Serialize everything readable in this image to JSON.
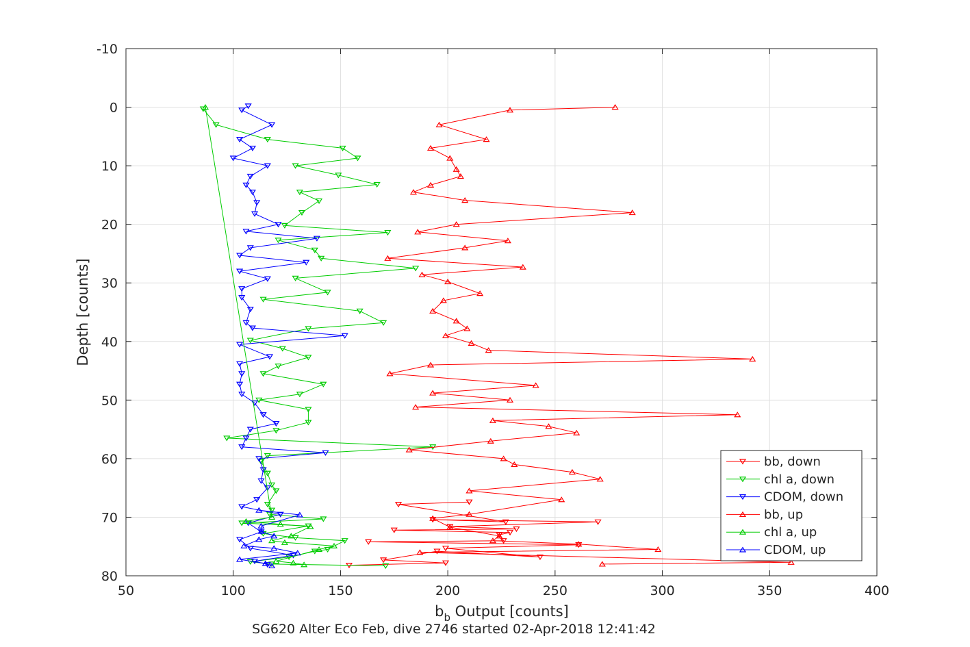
{
  "chart_data": {
    "type": "line",
    "xlabel_main": "b",
    "xlabel_sub": "b",
    "xlabel_rest": " Output [counts]",
    "ylabel": "Depth [counts]",
    "caption": "SG620 Alter Eco Feb, dive 2746 started 02-Apr-2018 12:41:42",
    "xlim": [
      50,
      400
    ],
    "ylim": [
      -10,
      80
    ],
    "y_reversed": true,
    "grid": true,
    "legend_position": "bottom-right",
    "xticks": [
      "50",
      "100",
      "150",
      "200",
      "250",
      "300",
      "350",
      "400"
    ],
    "yticks": [
      "-10",
      "0",
      "10",
      "20",
      "30",
      "40",
      "50",
      "60",
      "70",
      "80"
    ],
    "series": [
      {
        "name": "bb, down",
        "color": "#ff0000",
        "marker": "triangle-down",
        "points": [
          [
            154,
            78.2
          ],
          [
            199,
            77.8
          ],
          [
            170,
            77.3
          ],
          [
            195,
            75.8
          ],
          [
            243,
            76.8
          ],
          [
            199,
            75.3
          ],
          [
            261,
            74.7
          ],
          [
            163,
            74.2
          ],
          [
            226,
            74.0
          ],
          [
            224,
            73.0
          ],
          [
            229,
            72.6
          ],
          [
            175,
            72.2
          ],
          [
            232,
            72.0
          ],
          [
            201,
            71.6
          ],
          [
            270,
            70.8
          ],
          [
            193,
            70.4
          ],
          [
            227,
            70.8
          ],
          [
            177,
            67.8
          ],
          [
            210,
            67.4
          ]
        ]
      },
      {
        "name": "chl a, down",
        "color": "#00cc00",
        "marker": "triangle-down",
        "points": [
          [
            171,
            78.3
          ],
          [
            118,
            78.0
          ],
          [
            108,
            77.6
          ],
          [
            126,
            76.8
          ],
          [
            138,
            75.8
          ],
          [
            144,
            75.5
          ],
          [
            152,
            74.0
          ],
          [
            129,
            73.5
          ],
          [
            114,
            72.8
          ],
          [
            135,
            71.5
          ],
          [
            104,
            71.0
          ],
          [
            142,
            70.3
          ],
          [
            117,
            69.5
          ],
          [
            118,
            68.8
          ],
          [
            116,
            67.8
          ],
          [
            120,
            65.5
          ],
          [
            118,
            64.5
          ],
          [
            116,
            62.5
          ],
          [
            113,
            60.5
          ],
          [
            116,
            59.5
          ],
          [
            193,
            58.0
          ],
          [
            97,
            56.5
          ],
          [
            120,
            55.2
          ],
          [
            135,
            53.8
          ],
          [
            135,
            51.6
          ],
          [
            112,
            50.0
          ],
          [
            131,
            49.0
          ],
          [
            142,
            47.3
          ],
          [
            114,
            45.5
          ],
          [
            121,
            44.2
          ],
          [
            135,
            42.7
          ],
          [
            123,
            41.2
          ],
          [
            108,
            39.8
          ],
          [
            135,
            37.8
          ],
          [
            170,
            36.8
          ],
          [
            159,
            34.8
          ],
          [
            114,
            32.8
          ],
          [
            144,
            31.6
          ],
          [
            129,
            29.2
          ],
          [
            185,
            27.5
          ],
          [
            141,
            25.8
          ],
          [
            138,
            24.4
          ],
          [
            121,
            22.7
          ],
          [
            172,
            21.4
          ],
          [
            124,
            20.2
          ],
          [
            132,
            18.0
          ],
          [
            140,
            16.0
          ],
          [
            131,
            14.5
          ],
          [
            167,
            13.2
          ],
          [
            149,
            11.6
          ],
          [
            129,
            10.0
          ],
          [
            158,
            8.7
          ],
          [
            151,
            7.0
          ],
          [
            116,
            5.5
          ],
          [
            92,
            3.0
          ],
          [
            86,
            0.3
          ]
        ]
      },
      {
        "name": "CDOM, down",
        "color": "#0000ff",
        "marker": "triangle-down",
        "points": [
          [
            116,
            78.1
          ],
          [
            110,
            77.5
          ],
          [
            128,
            76.5
          ],
          [
            108,
            75.3
          ],
          [
            103,
            73.8
          ],
          [
            113,
            72.5
          ],
          [
            107,
            71.0
          ],
          [
            122,
            69.5
          ],
          [
            104,
            68.2
          ],
          [
            111,
            67.0
          ],
          [
            116,
            65.0
          ],
          [
            113,
            63.8
          ],
          [
            114,
            61.9
          ],
          [
            112,
            60.0
          ],
          [
            143,
            59.0
          ],
          [
            104,
            58.0
          ],
          [
            106,
            56.5
          ],
          [
            108,
            55.0
          ],
          [
            120,
            54.0
          ],
          [
            114,
            52.5
          ],
          [
            110,
            50.5
          ],
          [
            104,
            49.0
          ],
          [
            103,
            47.3
          ],
          [
            104,
            45.5
          ],
          [
            103,
            43.8
          ],
          [
            117,
            42.6
          ],
          [
            103,
            40.5
          ],
          [
            152,
            39.0
          ],
          [
            109,
            37.7
          ],
          [
            106,
            36.8
          ],
          [
            108,
            34.5
          ],
          [
            104,
            32.5
          ],
          [
            104,
            31.0
          ],
          [
            116,
            29.3
          ],
          [
            103,
            28.0
          ],
          [
            134,
            26.5
          ],
          [
            103,
            25.3
          ],
          [
            108,
            24.0
          ],
          [
            139,
            22.4
          ],
          [
            106,
            21.2
          ],
          [
            121,
            20.0
          ],
          [
            110,
            18.2
          ],
          [
            111,
            16.3
          ],
          [
            109,
            14.5
          ],
          [
            106,
            13.3
          ],
          [
            108,
            11.8
          ],
          [
            116,
            10.0
          ],
          [
            100,
            8.7
          ],
          [
            109,
            7.0
          ],
          [
            103,
            5.5
          ],
          [
            118,
            3.0
          ],
          [
            104,
            0.5
          ],
          [
            107,
            -0.2
          ]
        ]
      },
      {
        "name": "bb, up",
        "color": "#ff0000",
        "marker": "triangle-up",
        "points": [
          [
            272,
            78.0
          ],
          [
            360,
            77.7
          ],
          [
            187,
            76.0
          ],
          [
            298,
            75.5
          ],
          [
            261,
            74.6
          ],
          [
            221,
            74.0
          ],
          [
            224,
            73.2
          ],
          [
            201,
            71.7
          ],
          [
            193,
            70.2
          ],
          [
            210,
            69.5
          ],
          [
            253,
            67.0
          ],
          [
            210,
            65.5
          ],
          [
            271,
            63.5
          ],
          [
            258,
            62.3
          ],
          [
            231,
            61.0
          ],
          [
            226,
            60.0
          ],
          [
            182,
            58.5
          ],
          [
            220,
            57.0
          ],
          [
            260,
            55.6
          ],
          [
            247,
            54.5
          ],
          [
            221,
            53.5
          ],
          [
            335,
            52.5
          ],
          [
            185,
            51.2
          ],
          [
            229,
            50.0
          ],
          [
            193,
            48.8
          ],
          [
            241,
            47.5
          ],
          [
            173,
            45.5
          ],
          [
            192,
            44.0
          ],
          [
            342,
            43.0
          ],
          [
            219,
            41.5
          ],
          [
            211,
            40.3
          ],
          [
            199,
            39.0
          ],
          [
            209,
            37.8
          ],
          [
            204,
            36.5
          ],
          [
            193,
            34.8
          ],
          [
            198,
            33.0
          ],
          [
            215,
            31.8
          ],
          [
            200,
            29.8
          ],
          [
            188,
            28.6
          ],
          [
            235,
            27.3
          ],
          [
            172,
            25.8
          ],
          [
            208,
            24.0
          ],
          [
            228,
            22.8
          ],
          [
            186,
            21.3
          ],
          [
            204,
            20.0
          ],
          [
            286,
            18.0
          ],
          [
            208,
            15.9
          ],
          [
            184,
            14.5
          ],
          [
            192,
            13.3
          ],
          [
            206,
            11.8
          ],
          [
            204,
            10.6
          ],
          [
            201,
            8.7
          ],
          [
            192,
            7.0
          ],
          [
            218,
            5.5
          ],
          [
            196,
            3.0
          ],
          [
            229,
            0.5
          ],
          [
            278,
            0.0
          ]
        ]
      },
      {
        "name": "chl a, up",
        "color": "#00cc00",
        "marker": "triangle-up",
        "points": [
          [
            133,
            78.1
          ],
          [
            128,
            77.8
          ],
          [
            120,
            77.5
          ],
          [
            140,
            75.5
          ],
          [
            147,
            74.9
          ],
          [
            124,
            74.3
          ],
          [
            118,
            74.0
          ],
          [
            127,
            73.2
          ],
          [
            136,
            71.6
          ],
          [
            122,
            71.2
          ],
          [
            106,
            70.7
          ],
          [
            118,
            70.0
          ],
          [
            87,
            0.0
          ]
        ]
      },
      {
        "name": "CDOM, up",
        "color": "#0000ff",
        "marker": "triangle-up",
        "points": [
          [
            118,
            78.3
          ],
          [
            115,
            77.9
          ],
          [
            103,
            77.2
          ],
          [
            130,
            76.1
          ],
          [
            119,
            75.3
          ],
          [
            105,
            74.9
          ],
          [
            112,
            73.8
          ],
          [
            119,
            73.2
          ],
          [
            113,
            72.4
          ],
          [
            113,
            71.5
          ],
          [
            131,
            69.6
          ],
          [
            112,
            68.8
          ]
        ]
      }
    ]
  }
}
